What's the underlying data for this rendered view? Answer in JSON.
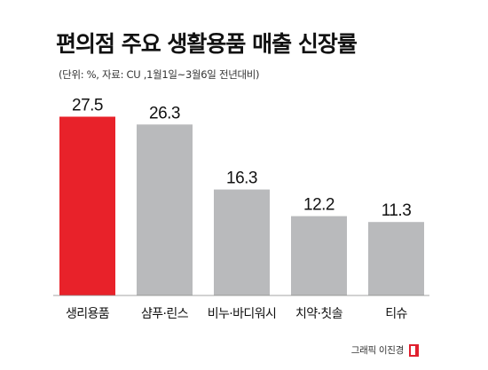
{
  "title": "편의점 주요 생활용품 매출 신장률",
  "subtitle": "(단위: %, 자료: CU ,1월1일~3월6일 전년대비)",
  "credit": "그래픽 이진경",
  "colors": {
    "highlight": "#e8222a",
    "bar": "#b9babc",
    "text": "#111111"
  },
  "chart_data": {
    "type": "bar",
    "title": "편의점 주요 생활용품 매출 신장률",
    "subtitle": "(단위: %, 자료: CU ,1월1일~3월6일 전년대비)",
    "categories": [
      "생리용품",
      "샴푸·린스",
      "비누·바디워시",
      "치약·칫솔",
      "티슈"
    ],
    "values": [
      27.5,
      26.3,
      16.3,
      12.2,
      11.3
    ],
    "value_labels": [
      "27.5",
      "26.3",
      "16.3",
      "12.2",
      "11.3"
    ],
    "highlight_index": 0,
    "ylim": [
      0,
      30
    ],
    "grid": false,
    "axes_visible": false
  }
}
